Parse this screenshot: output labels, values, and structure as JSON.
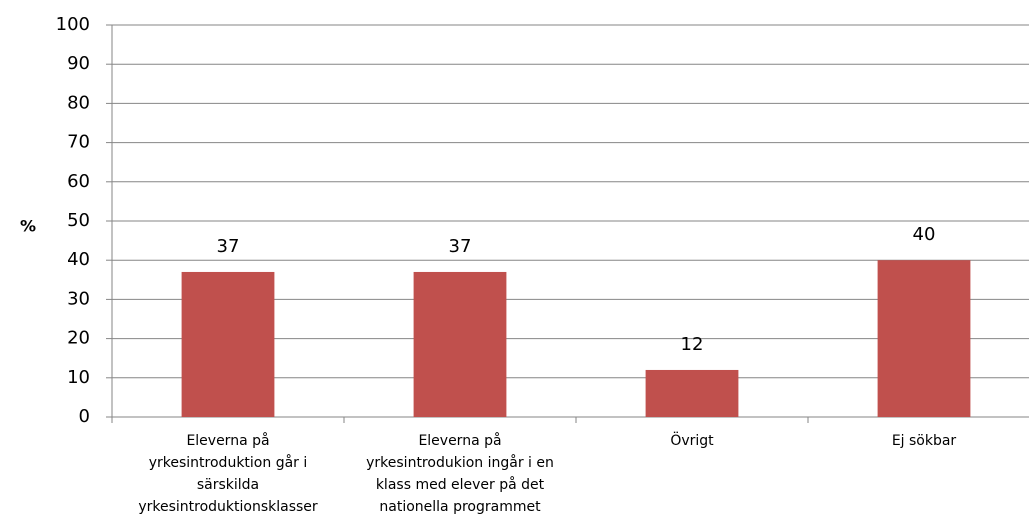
{
  "chart_data": {
    "type": "bar",
    "y_label": "%",
    "categories": [
      "Eleverna på yrkesintroduktion går i särskilda yrkesintroduktionsklasser",
      "Eleverna på yrkesintrodukion ingår i en klass med elever på det nationella programmet",
      "Övrigt",
      "Ej sökbar"
    ],
    "values": [
      37,
      37,
      12,
      40
    ],
    "color": "#c0504d",
    "ylim": [
      0,
      100
    ],
    "yticks": [
      0,
      10,
      20,
      30,
      40,
      50,
      60,
      70,
      80,
      90,
      100
    ],
    "grid": true
  }
}
